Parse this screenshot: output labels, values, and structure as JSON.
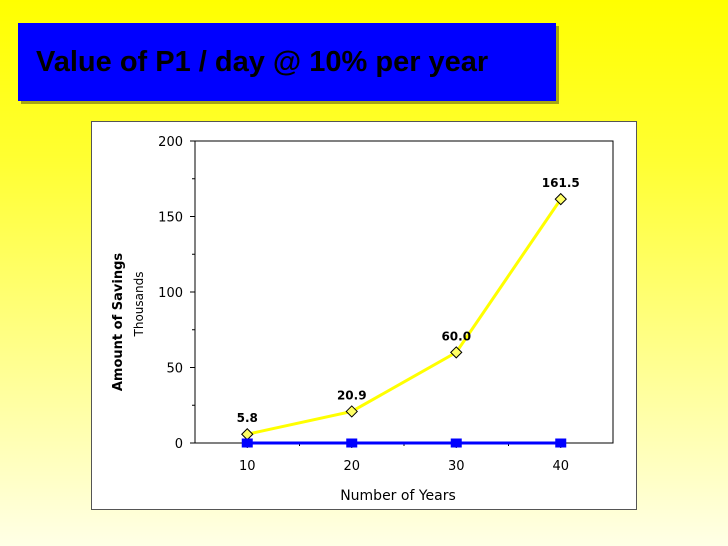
{
  "title": "Value of P1 / day @ 10% per year",
  "colors": {
    "title_bg": "#0000ff",
    "savings_line": "#ffff00",
    "marker_fill": "#ffff66",
    "baseline_series": "#0000ff"
  },
  "chart_data": {
    "type": "line",
    "xlabel": "Number of Years",
    "ylabel": "Amount of Savings",
    "ylabel_unit": "Thousands",
    "x": [
      10,
      20,
      30,
      40
    ],
    "ylim": [
      0,
      200
    ],
    "y_ticks": [
      0,
      50,
      100,
      150,
      200
    ],
    "series": [
      {
        "values": [
          5.8,
          20.9,
          60.0,
          161.5
        ],
        "data_labels": [
          "5.8",
          "20.9",
          "60.0",
          "161.5"
        ],
        "color": "#ffff00",
        "marker": "diamond"
      },
      {
        "values": [
          0,
          0,
          0,
          0
        ],
        "color": "#0000ff",
        "marker": "square"
      }
    ],
    "grid": false,
    "legend": "none"
  }
}
